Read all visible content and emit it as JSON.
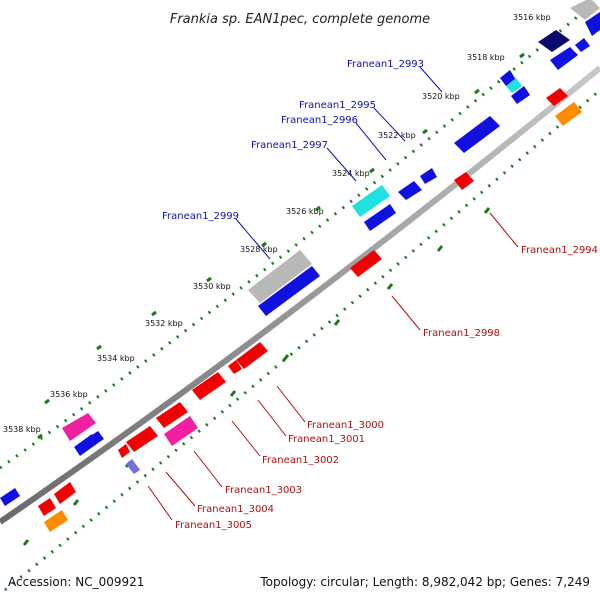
{
  "title": "Frankia sp. EAN1pec, complete genome",
  "accession": "Accession: NC_009921",
  "summary": "Topology: circular; Length: 8,982,042 bp; Genes: 7,249",
  "ticks": [
    "3516 kbp",
    "3518 kbp",
    "3520 kbp",
    "3522 kbp",
    "3524 kbp",
    "3526 kbp",
    "3528 kbp",
    "3530 kbp",
    "3532 kbp",
    "3534 kbp",
    "3536 kbp",
    "3538 kbp"
  ],
  "forward_gene_labels": [
    "Franean1_2993",
    "Franean1_2995",
    "Franean1_2996",
    "Franean1_2997",
    "Franean1_2999"
  ],
  "reverse_gene_labels": [
    "Franean1_2994",
    "Franean1_2998",
    "Franean1_3000",
    "Franean1_3001",
    "Franean1_3002",
    "Franean1_3003",
    "Franean1_3004",
    "Franean1_3005"
  ],
  "colors": {
    "forward_label": "#1010b0",
    "reverse_label": "#b01010",
    "backbone": "#8a8a8a",
    "tick_marks": "#1a7a1a",
    "blue": "#1010e0",
    "navy": "#0a0a6e",
    "cyan": "#20e0e0",
    "gray": "#b8b8b8",
    "red": "#f00000",
    "pink": "#f020a0",
    "orange": "#ff8c00",
    "lavender": "#7070e0"
  }
}
